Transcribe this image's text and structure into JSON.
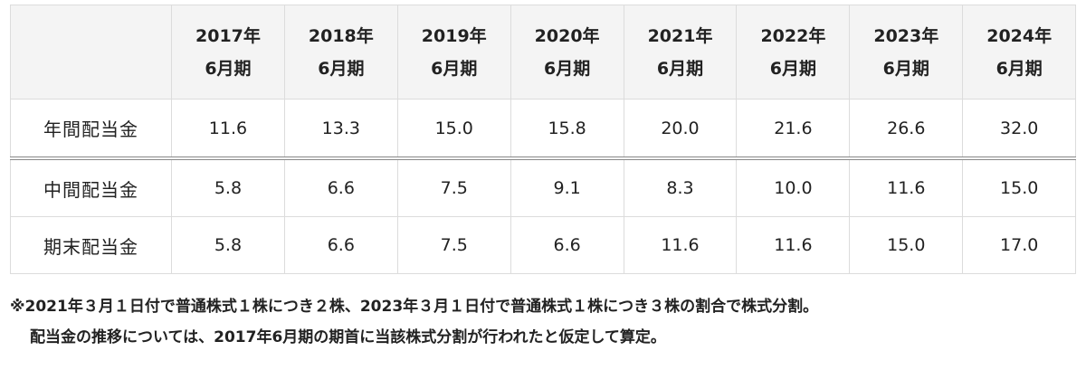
{
  "table": {
    "columns": [
      {
        "year": "2017年",
        "period": "6月期"
      },
      {
        "year": "2018年",
        "period": "6月期"
      },
      {
        "year": "2019年",
        "period": "6月期"
      },
      {
        "year": "2020年",
        "period": "6月期"
      },
      {
        "year": "2021年",
        "period": "6月期"
      },
      {
        "year": "2022年",
        "period": "6月期"
      },
      {
        "year": "2023年",
        "period": "6月期"
      },
      {
        "year": "2024年",
        "period": "6月期"
      }
    ],
    "rows": [
      {
        "label": "年間配当金",
        "values": [
          "11.6",
          "13.3",
          "15.0",
          "15.8",
          "20.0",
          "21.6",
          "26.6",
          "32.0"
        ]
      },
      {
        "label": "中間配当金",
        "values": [
          "5.8",
          "6.6",
          "7.5",
          "9.1",
          "8.3",
          "10.0",
          "11.6",
          "15.0"
        ]
      },
      {
        "label": "期末配当金",
        "values": [
          "5.8",
          "6.6",
          "7.5",
          "6.6",
          "11.6",
          "11.6",
          "15.0",
          "17.0"
        ]
      }
    ]
  },
  "notes": {
    "line1": "※2021年３月１日付で普通株式１株につき２株、2023年３月１日付で普通株式１株につき３株の割合で株式分割。",
    "line2": "配当金の推移については、2017年6月期の期首に当該株式分割が行われたと仮定して算定。"
  }
}
